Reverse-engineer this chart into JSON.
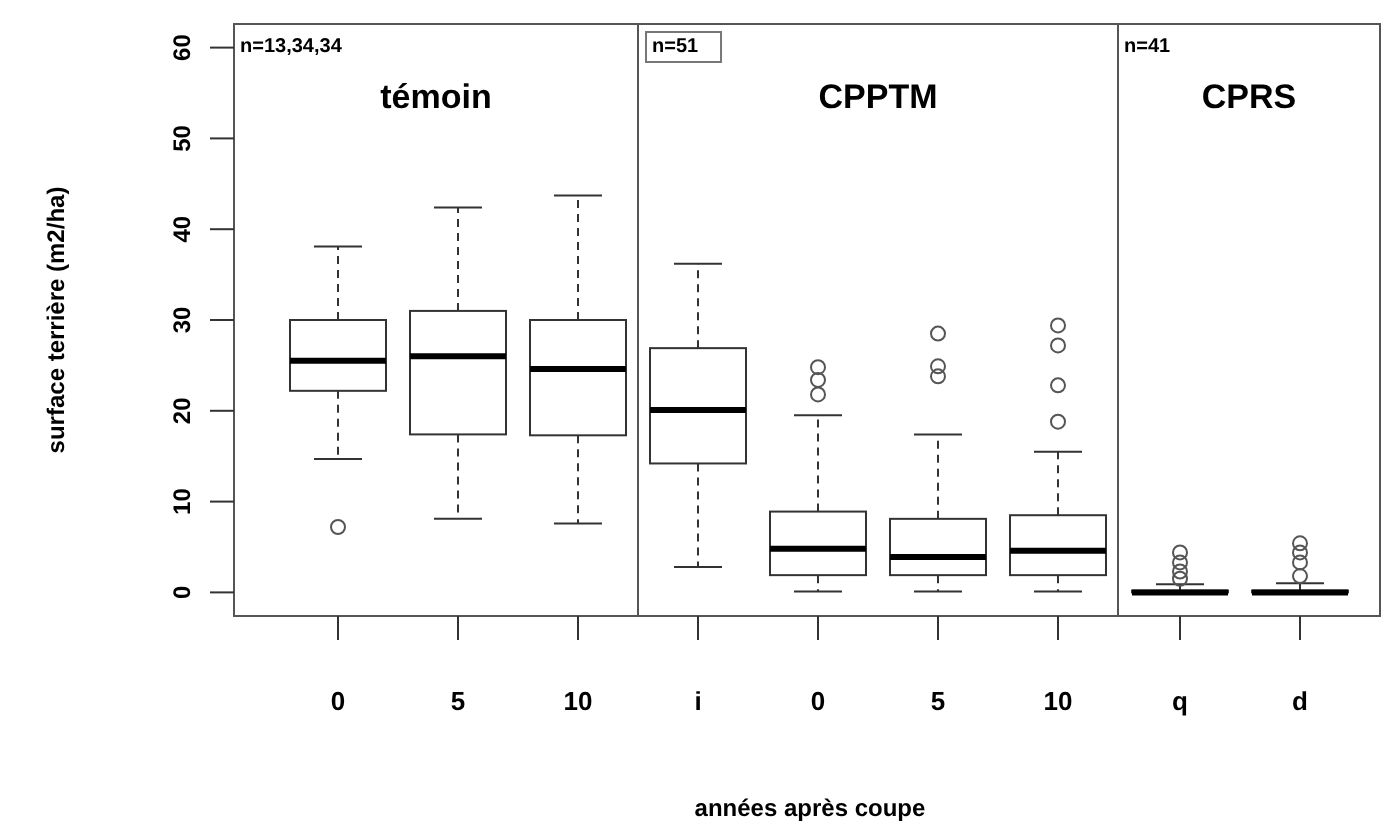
{
  "chart_data": [
    {
      "type": "box",
      "title": "témoin",
      "ylabel": "surface terrière (m2/ha)",
      "categories": [
        "0",
        "5",
        "10"
      ],
      "ylim": [
        -2.6,
        62.6
      ],
      "yticks": [
        0,
        10,
        20,
        30,
        40,
        50,
        60
      ],
      "annotations": [
        "n=13,34,34"
      ],
      "boxes": [
        {
          "low": 14.7,
          "q1": 22.2,
          "median": 25.5,
          "q3": 30,
          "high": 38.1,
          "outliers": [
            7.2
          ]
        },
        {
          "low": 8.1,
          "q1": 17.4,
          "median": 26,
          "q3": 31,
          "high": 42.4
        },
        {
          "low": 7.6,
          "q1": 17.3,
          "median": 24.6,
          "q3": 30,
          "high": 43.7
        }
      ]
    },
    {
      "type": "box",
      "title": "CPPTM",
      "xlabel": "années après coupe",
      "categories": [
        "i",
        "0",
        "5",
        "10"
      ],
      "ylim": [
        -2.6,
        62.6
      ],
      "tick_labels": "x",
      "annotations": [
        "n=51"
      ],
      "boxes": [
        {
          "low": 2.8,
          "q1": 14.2,
          "median": 20.1,
          "q3": 26.9,
          "high": 36.2
        },
        {
          "low": 0.1,
          "q1": 1.9,
          "median": 4.8,
          "q3": 8.9,
          "high": 19.5,
          "outliers": [
            24.8,
            23.4,
            21.8
          ]
        },
        {
          "low": 0.1,
          "q1": 1.9,
          "median": 3.9,
          "q3": 8.1,
          "high": 17.4,
          "outliers": [
            28.5,
            24.9,
            23.8
          ]
        },
        {
          "low": 0.1,
          "q1": 1.9,
          "median": 4.6,
          "q3": 8.5,
          "high": 15.5,
          "outliers": [
            29.4,
            27.2,
            22.8,
            18.8
          ]
        }
      ]
    },
    {
      "type": "box",
      "title": "CPRS",
      "categories": [
        "q",
        "d"
      ],
      "ylim": [
        -2.6,
        62.6
      ],
      "tick_labels": "x",
      "annotations": [
        "n=41"
      ],
      "boxes": [
        {
          "low": 0,
          "q1": 0,
          "median": 0,
          "q3": 0.2,
          "high": 0.9,
          "outliers": [
            4.4,
            3.3,
            2.3,
            1.5
          ]
        },
        {
          "low": 0,
          "q1": 0,
          "median": 0,
          "q3": 0.2,
          "high": 1,
          "outliers": [
            5.4,
            4.4,
            3.3,
            1.8
          ]
        }
      ]
    }
  ]
}
